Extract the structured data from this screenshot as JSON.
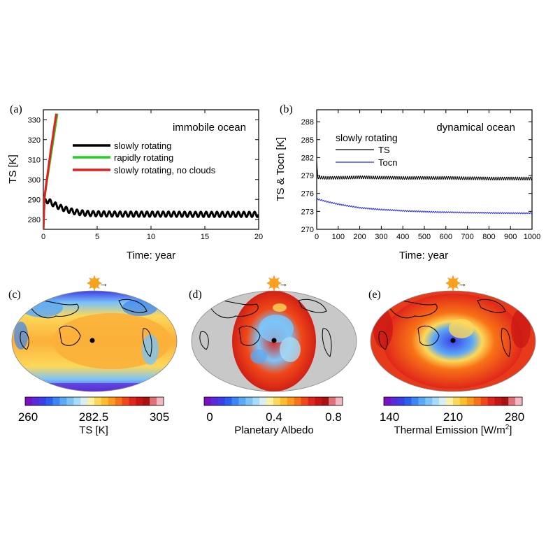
{
  "chart_data": [
    {
      "panel": "(a)",
      "type": "line",
      "annotation": "immobile ocean",
      "annotation_color": "#1414d2",
      "xlabel": "Time: year",
      "ylabel": "TS [K]",
      "xlim": [
        0,
        20
      ],
      "ylim": [
        275,
        335
      ],
      "xticks": [
        0,
        5,
        10,
        15,
        20
      ],
      "yticks": [
        280,
        290,
        300,
        310,
        320,
        330
      ],
      "series": [
        {
          "name": "slowly rotating",
          "color": "#000000",
          "x": [
            0,
            0.1,
            0.3,
            0.6,
            1.0,
            1.5,
            2.0,
            2.5,
            3.0,
            3.5,
            4.0,
            5.0,
            6.0,
            8.0,
            10.0,
            12.0,
            14.0,
            16.0,
            18.0,
            20.0
          ],
          "values": [
            275,
            289,
            289.5,
            288.8,
            287.5,
            286.2,
            285.2,
            284.3,
            283.7,
            283.3,
            283.0,
            282.8,
            282.7,
            282.6,
            282.6,
            282.6,
            282.5,
            282.5,
            282.5,
            282.5
          ],
          "seasonal_amplitude": 1.3
        },
        {
          "name": "rapidly rotating",
          "color": "#1ed21e",
          "x": [
            0,
            0.1,
            0.3,
            0.5,
            0.7,
            0.9,
            1.1,
            1.3
          ],
          "values": [
            275,
            290,
            298,
            305,
            312,
            319,
            326,
            333
          ]
        },
        {
          "name": "slowly rotating, no clouds",
          "color": "#e61e1e",
          "x": [
            0,
            0.1,
            0.3,
            0.5,
            0.7,
            0.9,
            1.0,
            1.2
          ],
          "values": [
            275,
            291,
            299,
            307,
            315,
            322,
            326,
            333
          ]
        }
      ]
    },
    {
      "panel": "(b)",
      "type": "line",
      "annotation": "dynamical ocean",
      "annotation_color": "#1414d2",
      "legend_title": "slowly rotating",
      "xlabel": "Time: year",
      "ylabel": "TS & Tocn [K]",
      "xlim": [
        0,
        1000
      ],
      "ylim": [
        270,
        290
      ],
      "xticks": [
        0,
        100,
        200,
        300,
        400,
        500,
        600,
        700,
        800,
        900,
        1000
      ],
      "yticks": [
        270,
        273,
        276,
        279,
        282,
        285,
        288
      ],
      "series": [
        {
          "name": "TS",
          "color": "#000000",
          "x": [
            0,
            5,
            50,
            200,
            400,
            600,
            800,
            1000
          ],
          "values": [
            281.5,
            278.7,
            278.6,
            278.7,
            278.6,
            278.6,
            278.5,
            278.5
          ],
          "seasonal_amplitude": 0.25
        },
        {
          "name": "Tocn",
          "color": "#2828e6",
          "x": [
            0,
            50,
            100,
            200,
            300,
            400,
            500,
            600,
            700,
            800,
            900,
            1000
          ],
          "values": [
            275.1,
            274.6,
            274.2,
            273.6,
            273.3,
            273.1,
            272.95,
            272.85,
            272.8,
            272.75,
            272.7,
            272.7
          ],
          "seasonal_amplitude": 0.1
        }
      ]
    },
    {
      "panel": "(c)",
      "type": "heatmap",
      "colorbar_ticks": [
        "260",
        "282.5",
        "305"
      ],
      "colorbar_label": "TS [K]"
    },
    {
      "panel": "(d)",
      "type": "heatmap",
      "colorbar_ticks": [
        "0",
        "0.4",
        "0.8"
      ],
      "colorbar_label": "Planetary Albedo"
    },
    {
      "panel": "(e)",
      "type": "heatmap",
      "colorbar_ticks": [
        "140",
        "210",
        "280"
      ],
      "colorbar_label_main": "Thermal Emission [W/m",
      "colorbar_label_sup": "2",
      "colorbar_label_end": "]"
    }
  ],
  "colormap": [
    "#7a12c2",
    "#5a2bd8",
    "#3c3ee8",
    "#2a5ff0",
    "#3a86f4",
    "#5aa8f6",
    "#7cc4f8",
    "#a6dcf6",
    "#d9eef2",
    "#fbf2a8",
    "#fcd85a",
    "#fcbe2e",
    "#fb9c1e",
    "#f87216",
    "#f04818",
    "#e0261a",
    "#c81414",
    "#a81212",
    "#e0707a",
    "#f2b8c0"
  ],
  "sun_arrow": "→"
}
